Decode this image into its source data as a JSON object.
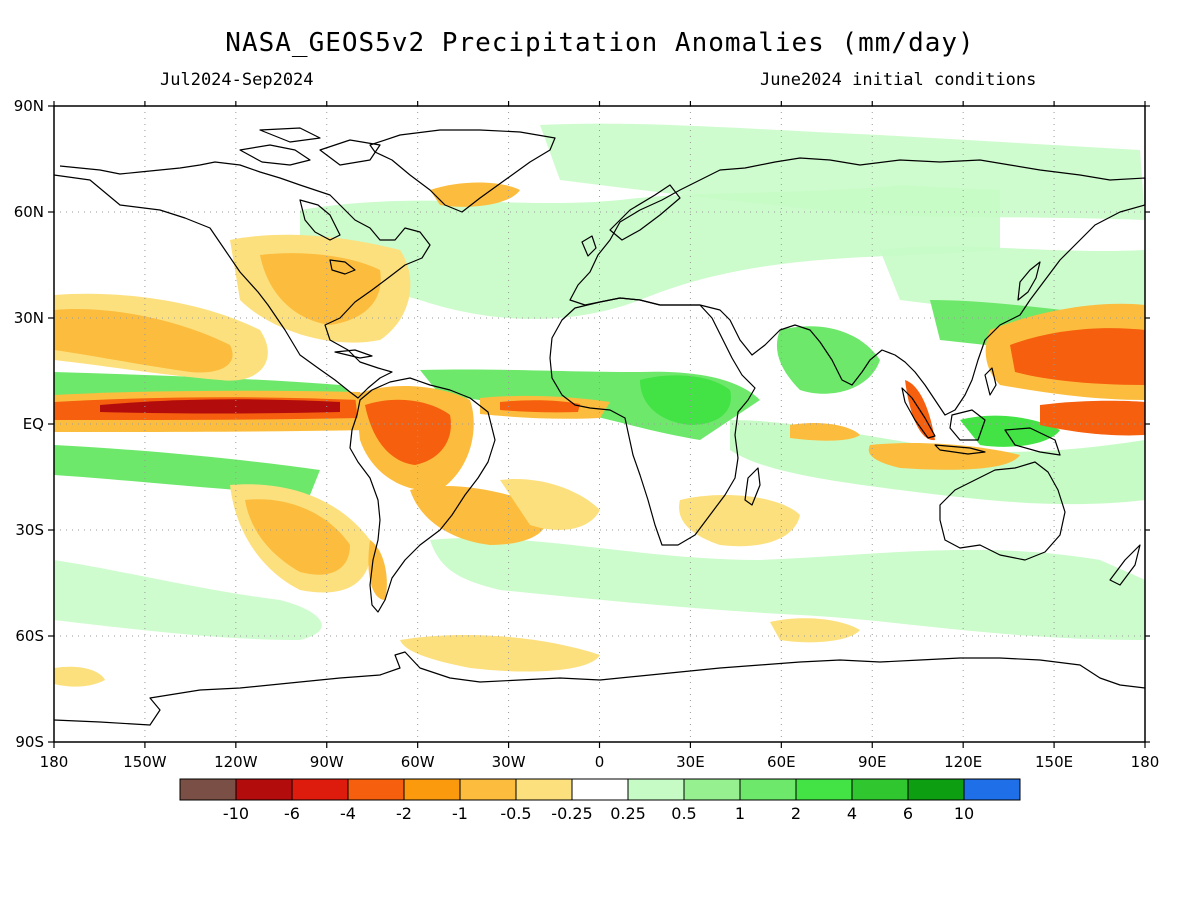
{
  "header": {
    "title": "NASA_GEOS5v2 Precipitation Anomalies (mm/day)",
    "period": "Jul2024-Sep2024",
    "init": "June2024 initial conditions"
  },
  "axes": {
    "lon_labels": [
      "180",
      "150W",
      "120W",
      "90W",
      "60W",
      "30W",
      "0",
      "30E",
      "60E",
      "90E",
      "120E",
      "150E",
      "180"
    ],
    "lat_labels": [
      "90N",
      "60N",
      "30N",
      "EQ",
      "30S",
      "60S",
      "90S"
    ]
  },
  "colorbar": {
    "colors": [
      "#7a4f45",
      "#b30c0c",
      "#dd1c0e",
      "#f55f0e",
      "#fb9a0c",
      "#fcbd3e",
      "#fde07e",
      "#ffffff",
      "#c7fbc6",
      "#96f090",
      "#6de86b",
      "#43e245",
      "#2fc62f",
      "#0e9e12",
      "#1f6fe8"
    ],
    "labels": [
      "-10",
      "-6",
      "-4",
      "-2",
      "-1",
      "-0.5",
      "-0.25",
      "0.25",
      "0.5",
      "1",
      "2",
      "4",
      "6",
      "10"
    ]
  }
}
